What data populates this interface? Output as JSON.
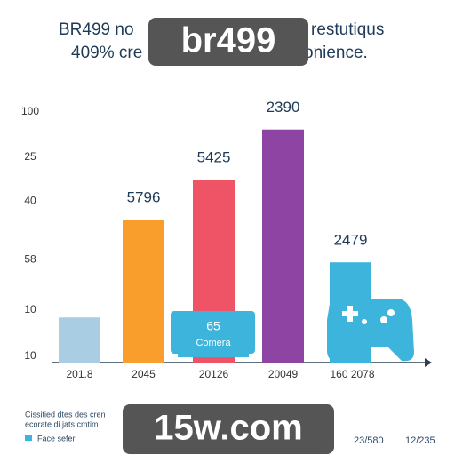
{
  "chart_data": {
    "type": "bar",
    "title_parts": [
      "BR499 no",
      "restutiqus",
      "409% cre",
      "onience."
    ],
    "watermarks": [
      "br499",
      "15w.com"
    ],
    "categories": [
      "201.8",
      "2045",
      "20126",
      "20049",
      "160 2078"
    ],
    "values": [
      18,
      57,
      73,
      93,
      40
    ],
    "colors": [
      "#a9cde2",
      "#f99d2c",
      "#ee5366",
      "#8e44a3",
      "#3db4dc"
    ],
    "annotations": [
      "5796",
      "5425",
      "2390",
      "2479"
    ],
    "callout": [
      "65",
      "Comera"
    ],
    "ylim": [
      0,
      100
    ],
    "yticks": [
      100,
      {
        "value": 82,
        "label": "25"
      },
      {
        "value": 64.5,
        "label": "40"
      },
      {
        "value": 41,
        "label": "58"
      },
      {
        "value": 21,
        "label": "10"
      },
      {
        "value": 2.5,
        "label": "10"
      }
    ],
    "grid": false,
    "legend_texts": [
      "Cissitied dtes des cren",
      "ecorate di jats cmtim",
      "Face sefer",
      "23/580",
      "12/235"
    ]
  }
}
